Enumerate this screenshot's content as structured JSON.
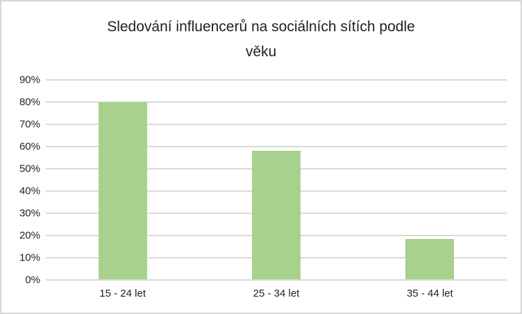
{
  "window": {
    "background": "#ffffff",
    "border_color": "#d6d6d6"
  },
  "chart_data": {
    "type": "bar",
    "title": "Sledování influencerů na sociálních sítích podle věku",
    "title_lines": [
      "Sledování influencerů na sociálních sítích podle",
      "věku"
    ],
    "categories": [
      "15 - 24 let",
      "25 - 34 let",
      "35 - 44 let"
    ],
    "values": [
      80,
      58,
      18.5
    ],
    "unit": "%",
    "xlabel": "",
    "ylabel": "",
    "ylim": [
      0,
      90
    ],
    "ytick_step": 10,
    "ytick_labels": [
      "0%",
      "10%",
      "20%",
      "30%",
      "40%",
      "50%",
      "60%",
      "70%",
      "80%",
      "90%"
    ],
    "grid": true,
    "legend": false,
    "bar_color": "#a9d18e",
    "gridline_color": "#d9d9d9",
    "axis_line_color": "#d9d9d9",
    "text_color": "#1f1f1f"
  }
}
